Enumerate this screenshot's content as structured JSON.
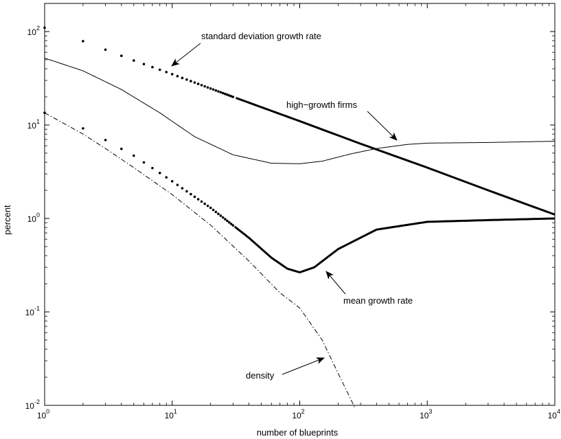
{
  "chart_data": {
    "type": "line",
    "title": "",
    "xlabel": "number of blueprints",
    "ylabel": "percent",
    "xscale": "log",
    "yscale": "log",
    "xlim": [
      1,
      10000
    ],
    "ylim": [
      0.01,
      200
    ],
    "grid": false,
    "x_ticks": [
      {
        "base": "10",
        "exp": "0"
      },
      {
        "base": "10",
        "exp": "1"
      },
      {
        "base": "10",
        "exp": "2"
      },
      {
        "base": "10",
        "exp": "3"
      },
      {
        "base": "10",
        "exp": "4"
      }
    ],
    "y_ticks": [
      {
        "base": "10",
        "exp": "2"
      },
      {
        "base": "10",
        "exp": "1"
      },
      {
        "base": "10",
        "exp": "0"
      },
      {
        "base": "10",
        "exp": "-1"
      },
      {
        "base": "10",
        "exp": "-2"
      }
    ],
    "series": [
      {
        "name": "standard deviation growth rate",
        "style": "dotted-thick",
        "x": [
          1,
          2,
          3,
          5,
          10,
          30,
          100,
          300,
          1000,
          3000,
          10000
        ],
        "y": [
          110,
          79,
          64,
          49,
          35,
          20,
          11.0,
          6.3,
          3.5,
          2.0,
          1.1
        ]
      },
      {
        "name": "high-growth firms",
        "style": "solid-thin",
        "x": [
          1,
          2,
          4,
          8,
          15,
          30,
          60,
          100,
          150,
          250,
          400,
          700,
          1000,
          3000,
          10000
        ],
        "y": [
          52,
          38,
          24,
          13.5,
          7.5,
          4.8,
          3.9,
          3.85,
          4.1,
          4.9,
          5.6,
          6.2,
          6.4,
          6.5,
          6.7
        ]
      },
      {
        "name": "mean growth rate",
        "style": "dotted-thick",
        "x": [
          1,
          2,
          3,
          5,
          10,
          20,
          40,
          60,
          80,
          100,
          130,
          200,
          400,
          1000,
          3000,
          10000
        ],
        "y": [
          13.5,
          9.2,
          6.9,
          4.7,
          2.5,
          1.3,
          0.62,
          0.38,
          0.29,
          0.265,
          0.3,
          0.47,
          0.76,
          0.92,
          0.96,
          1.0
        ]
      },
      {
        "name": "density",
        "style": "dashdot",
        "x": [
          1,
          2,
          3,
          5,
          10,
          20,
          40,
          70,
          100,
          150,
          200,
          270
        ],
        "y": [
          13.5,
          8.0,
          5.6,
          3.5,
          1.8,
          0.85,
          0.35,
          0.16,
          0.11,
          0.05,
          0.022,
          0.0095
        ]
      }
    ],
    "annotations": [
      {
        "text": "standard deviation growth rate",
        "target_series": "standard deviation growth rate"
      },
      {
        "text": "high−growth firms",
        "target_series": "high-growth firms"
      },
      {
        "text": "mean growth rate",
        "target_series": "mean growth rate"
      },
      {
        "text": "density",
        "target_series": "density"
      }
    ]
  },
  "colors": {
    "line": "#000000",
    "background": "#ffffff"
  }
}
